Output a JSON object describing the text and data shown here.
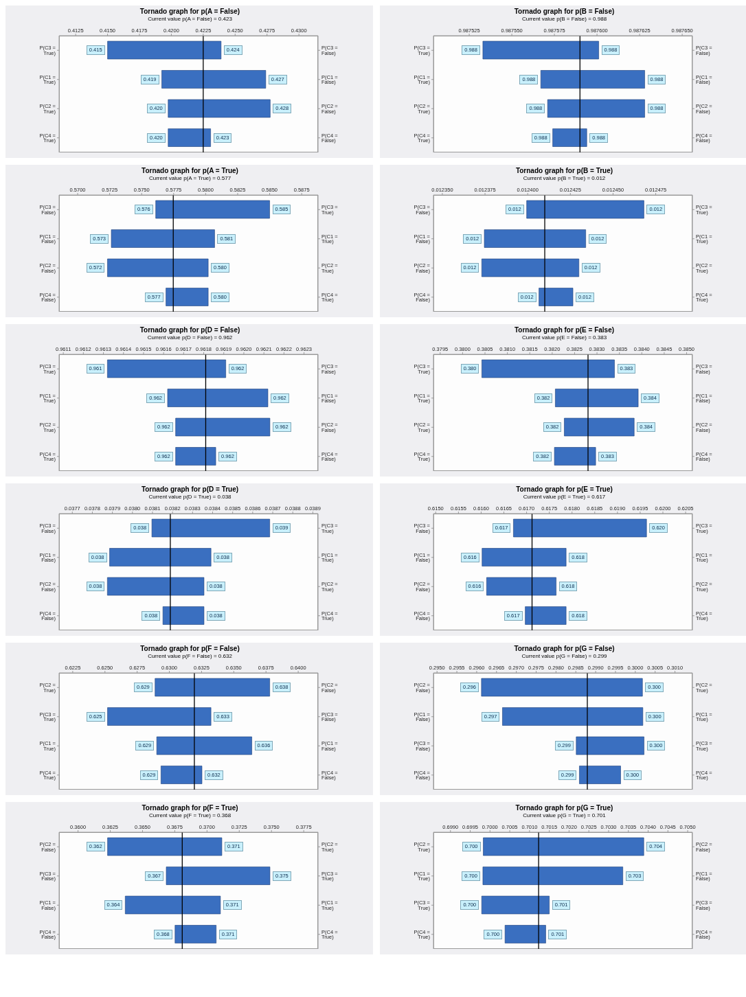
{
  "chart_data": [
    {
      "type": "bar",
      "orientation": "horizontal",
      "title": "Tornado graph for p(A = False)",
      "subtitle": "Current value p(A = False) = 0.423",
      "color": "#3a6fc0",
      "categories": [
        "P(C3 = True)",
        "P(C1 = True)",
        "P(C2 = True)",
        "P(C4 = True)"
      ],
      "y2_categories": [
        "P(C3 = False)",
        "P(C1 = False)",
        "P(C2 = False)",
        "P(C4 = False)"
      ],
      "base": [
        0.415,
        0.41925,
        0.41975,
        0.41975
      ],
      "values": [
        0.0089,
        0.00815,
        0.008,
        0.00333
      ],
      "xlim": [
        0.4112,
        0.4315
      ],
      "xticks": [
        0.4125,
        {
          "value": 0.415,
          "label": "0.4150"
        },
        0.4175,
        {
          "value": 0.42,
          "label": "0.4200"
        },
        0.4225,
        {
          "value": 0.425,
          "label": "0.4250"
        },
        0.4275,
        {
          "value": 0.43,
          "label": "0.4300"
        }
      ],
      "ref_lines": [
        {
          "axis": "x",
          "value": 0.4225,
          "color": "#000000"
        }
      ],
      "annotations": [
        {
          "text": "0.415",
          "x": 0.415,
          "y": "P(C3 = True)"
        },
        {
          "text": "0.424",
          "x": 0.4239,
          "y": "P(C3 = True)"
        },
        {
          "text": "0.419",
          "x": 0.41925,
          "y": "P(C1 = True)"
        },
        {
          "text": "0.427",
          "x": 0.4274,
          "y": "P(C1 = True)"
        },
        {
          "text": "0.420",
          "x": 0.41975,
          "y": "P(C2 = True)"
        },
        {
          "text": "0.428",
          "x": 0.42775,
          "y": "P(C2 = True)"
        },
        {
          "text": "0.420",
          "x": 0.41975,
          "y": "P(C4 = True)"
        },
        {
          "text": "0.423",
          "x": 0.42308,
          "y": "P(C4 = True)"
        }
      ]
    },
    {
      "type": "bar",
      "orientation": "horizontal",
      "title": "Tornado graph for p(B = False)",
      "subtitle": "Current value p(B = False) = 0.988",
      "color": "#3a6fc0",
      "categories": [
        "P(C3 = True)",
        "P(C1 = True)",
        "P(C2 = True)",
        "P(C4 = True)"
      ],
      "y2_categories": [
        "P(C3 = False)",
        "P(C1 = False)",
        "P(C2 = False)",
        "P(C4 = False)"
      ],
      "base": [
        0.987533,
        0.987567,
        0.987571,
        0.987574
      ],
      "values": [
        6.8e-05,
        6.1e-05,
        5.7e-05,
        2e-05
      ],
      "xlim": [
        0.987504,
        0.987656
      ],
      "xticks": [
        0.987525,
        {
          "value": 0.98755,
          "label": "0.987550"
        },
        0.987575,
        {
          "value": 0.9876,
          "label": "0.987600"
        },
        0.987625,
        {
          "value": 0.98765,
          "label": "0.987650"
        }
      ],
      "ref_lines": [
        {
          "axis": "x",
          "value": 0.98759,
          "color": "#000000"
        }
      ],
      "annotations": [
        {
          "text": "0.988",
          "x": 0.987533,
          "y": "P(C3 = True)"
        },
        {
          "text": "0.988",
          "x": 0.987601,
          "y": "P(C3 = True)"
        },
        {
          "text": "0.988",
          "x": 0.987567,
          "y": "P(C1 = True)"
        },
        {
          "text": "0.988",
          "x": 0.987628,
          "y": "P(C1 = True)"
        },
        {
          "text": "0.988",
          "x": 0.987571,
          "y": "P(C2 = True)"
        },
        {
          "text": "0.988",
          "x": 0.987628,
          "y": "P(C2 = True)"
        },
        {
          "text": "0.988",
          "x": 0.987574,
          "y": "P(C4 = True)"
        },
        {
          "text": "0.988",
          "x": 0.987594,
          "y": "P(C4 = True)"
        }
      ]
    },
    {
      "type": "bar",
      "orientation": "horizontal",
      "title": "Tornado graph for p(A = True)",
      "subtitle": "Current value p(A = True) = 0.577",
      "color": "#3a6fc0",
      "categories": [
        "P(C3 = False)",
        "P(C1 = False)",
        "P(C2 = False)",
        "P(C4 = False)"
      ],
      "y2_categories": [
        "P(C3 = True)",
        "P(C1 = True)",
        "P(C2 = True)",
        "P(C4 = True)"
      ],
      "base": [
        0.5761,
        0.57263,
        0.57233,
        0.5769
      ],
      "values": [
        0.0089,
        0.00807,
        0.00787,
        0.0033
      ],
      "xlim": [
        0.56855,
        0.58878
      ],
      "xticks": [
        {
          "value": 0.57,
          "label": "0.5700"
        },
        0.5725,
        {
          "value": 0.575,
          "label": "0.5750"
        },
        0.5775,
        {
          "value": 0.58,
          "label": "0.5800"
        },
        0.5825,
        {
          "value": 0.585,
          "label": "0.5850"
        },
        0.5875
      ],
      "ref_lines": [
        {
          "axis": "x",
          "value": 0.57747,
          "color": "#000000"
        }
      ],
      "annotations": [
        {
          "text": "0.576",
          "x": 0.5761,
          "y": "P(C3 = False)"
        },
        {
          "text": "0.585",
          "x": 0.585,
          "y": "P(C3 = False)"
        },
        {
          "text": "0.573",
          "x": 0.57263,
          "y": "P(C1 = False)"
        },
        {
          "text": "0.581",
          "x": 0.5807,
          "y": "P(C1 = False)"
        },
        {
          "text": "0.572",
          "x": 0.57233,
          "y": "P(C2 = False)"
        },
        {
          "text": "0.580",
          "x": 0.5802,
          "y": "P(C2 = False)"
        },
        {
          "text": "0.577",
          "x": 0.5769,
          "y": "P(C4 = False)"
        },
        {
          "text": "0.580",
          "x": 0.5802,
          "y": "P(C4 = False)"
        }
      ]
    },
    {
      "type": "bar",
      "orientation": "horizontal",
      "title": "Tornado graph for p(B = True)",
      "subtitle": "Current value p(B = True) = 0.012",
      "color": "#3a6fc0",
      "categories": [
        "P(C3 = False)",
        "P(C1 = False)",
        "P(C2 = False)",
        "P(C4 = False)"
      ],
      "y2_categories": [
        "P(C3 = True)",
        "P(C1 = True)",
        "P(C2 = True)",
        "P(C4 = True)"
      ],
      "base": [
        0.0123994,
        0.0123746,
        0.0123731,
        0.0124066
      ],
      "values": [
        6.87e-05,
        5.94e-05,
        5.69e-05,
        1.99e-05
      ],
      "xlim": [
        0.0123448,
        0.0124965
      ],
      "xticks": [
        {
          "value": 0.01235,
          "label": "0.012350"
        },
        0.012375,
        {
          "value": 0.0124,
          "label": "0.012400"
        },
        0.012425,
        {
          "value": 0.01245,
          "label": "0.012450"
        },
        0.012475
      ],
      "ref_lines": [
        {
          "axis": "x",
          "value": 0.01241,
          "color": "#000000"
        }
      ],
      "annotations": [
        {
          "text": "0.012",
          "x": 0.0123994,
          "y": "P(C3 = False)"
        },
        {
          "text": "0.012",
          "x": 0.0124681,
          "y": "P(C3 = False)"
        },
        {
          "text": "0.012",
          "x": 0.0123746,
          "y": "P(C1 = False)"
        },
        {
          "text": "0.012",
          "x": 0.012434,
          "y": "P(C1 = False)"
        },
        {
          "text": "0.012",
          "x": 0.0123731,
          "y": "P(C2 = False)"
        },
        {
          "text": "0.012",
          "x": 0.01243,
          "y": "P(C2 = False)"
        },
        {
          "text": "0.012",
          "x": 0.0124066,
          "y": "P(C4 = False)"
        },
        {
          "text": "0.012",
          "x": 0.0124265,
          "y": "P(C4 = False)"
        }
      ]
    },
    {
      "type": "bar",
      "orientation": "horizontal",
      "title": "Tornado graph for p(D = False)",
      "subtitle": "Current value p(D = False) = 0.962",
      "color": "#3a6fc0",
      "categories": [
        "P(C3 = True)",
        "P(C1 = True)",
        "P(C2 = True)",
        "P(C4 = True)"
      ],
      "y2_categories": [
        "P(C3 = False)",
        "P(C1 = False)",
        "P(C2 = False)",
        "P(C4 = False)"
      ],
      "base": [
        0.96132,
        0.96162,
        0.96166,
        0.96166
      ],
      "values": [
        0.00059,
        0.0005,
        0.00047,
        0.0002
      ],
      "xlim": [
        0.961079,
        0.96237
      ],
      "xticks": [
        0.9611,
        0.9612,
        0.9613,
        0.9614,
        0.9615,
        0.9616,
        0.9617,
        0.9618,
        0.9619,
        {
          "value": 0.962,
          "label": "0.9620"
        },
        0.9621,
        0.9622,
        0.9623
      ],
      "ref_lines": [
        {
          "axis": "x",
          "value": 0.96181,
          "color": "#000000"
        }
      ],
      "annotations": [
        {
          "text": "0.961",
          "x": 0.96132,
          "y": "P(C3 = True)"
        },
        {
          "text": "0.962",
          "x": 0.96191,
          "y": "P(C3 = True)"
        },
        {
          "text": "0.962",
          "x": 0.96162,
          "y": "P(C1 = True)"
        },
        {
          "text": "0.962",
          "x": 0.96212,
          "y": "P(C1 = True)"
        },
        {
          "text": "0.962",
          "x": 0.96166,
          "y": "P(C2 = True)"
        },
        {
          "text": "0.962",
          "x": 0.96213,
          "y": "P(C2 = True)"
        },
        {
          "text": "0.962",
          "x": 0.96166,
          "y": "P(C4 = True)"
        },
        {
          "text": "0.962",
          "x": 0.96186,
          "y": "P(C4 = True)"
        }
      ]
    },
    {
      "type": "bar",
      "orientation": "horizontal",
      "title": "Tornado graph for p(E = False)",
      "subtitle": "Current value p(E = False) = 0.383",
      "color": "#3a6fc0",
      "categories": [
        "P(C3 = True)",
        "P(C1 = True)",
        "P(C2 = True)",
        "P(C4 = True)"
      ],
      "y2_categories": [
        "P(C3 = False)",
        "P(C1 = False)",
        "P(C2 = False)",
        "P(C4 = False)"
      ],
      "base": [
        0.38043,
        0.38207,
        0.38227,
        0.38205
      ],
      "values": [
        0.00296,
        0.00185,
        0.00156,
        0.00092
      ],
      "xlim": [
        0.37935,
        0.38513
      ],
      "xticks": [
        0.3795,
        {
          "value": 0.38,
          "label": "0.3800"
        },
        0.3805,
        {
          "value": 0.381,
          "label": "0.3810"
        },
        0.3815,
        {
          "value": 0.382,
          "label": "0.3820"
        },
        0.3825,
        {
          "value": 0.383,
          "label": "0.3830"
        },
        0.3835,
        {
          "value": 0.384,
          "label": "0.3840"
        },
        0.3845,
        {
          "value": 0.385,
          "label": "0.3850"
        }
      ],
      "ref_lines": [
        {
          "axis": "x",
          "value": 0.3828,
          "color": "#000000"
        }
      ],
      "annotations": [
        {
          "text": "0.380",
          "x": 0.38043,
          "y": "P(C3 = True)"
        },
        {
          "text": "0.383",
          "x": 0.38339,
          "y": "P(C3 = True)"
        },
        {
          "text": "0.382",
          "x": 0.38207,
          "y": "P(C1 = True)"
        },
        {
          "text": "0.384",
          "x": 0.38392,
          "y": "P(C1 = True)"
        },
        {
          "text": "0.382",
          "x": 0.38227,
          "y": "P(C2 = True)"
        },
        {
          "text": "0.384",
          "x": 0.38383,
          "y": "P(C2 = True)"
        },
        {
          "text": "0.382",
          "x": 0.38205,
          "y": "P(C4 = True)"
        },
        {
          "text": "0.383",
          "x": 0.38297,
          "y": "P(C4 = True)"
        }
      ]
    },
    {
      "type": "bar",
      "orientation": "horizontal",
      "title": "Tornado graph for p(D = True)",
      "subtitle": "Current value p(D = True) = 0.038",
      "color": "#3a6fc0",
      "categories": [
        "P(C3 = False)",
        "P(C1 = False)",
        "P(C2 = False)",
        "P(C4 = False)"
      ],
      "y2_categories": [
        "P(C3 = True)",
        "P(C1 = True)",
        "P(C2 = True)",
        "P(C4 = True)"
      ],
      "base": [
        0.038097,
        0.037886,
        0.037875,
        0.038152
      ],
      "values": [
        0.000588,
        0.000506,
        0.000482,
        0.000205
      ],
      "xlim": [
        0.037634,
        0.038926
      ],
      "xticks": [
        0.0377,
        0.0378,
        0.0379,
        {
          "value": 0.038,
          "label": "0.0380"
        },
        0.0381,
        0.0382,
        0.0383,
        0.0384,
        0.0385,
        0.0386,
        0.0387,
        0.0388,
        0.0389
      ],
      "ref_lines": [
        {
          "axis": "x",
          "value": 0.038189,
          "color": "#000000"
        }
      ],
      "annotations": [
        {
          "text": "0.038",
          "x": 0.038097,
          "y": "P(C3 = False)"
        },
        {
          "text": "0.039",
          "x": 0.038685,
          "y": "P(C3 = False)"
        },
        {
          "text": "0.038",
          "x": 0.037886,
          "y": "P(C1 = False)"
        },
        {
          "text": "0.038",
          "x": 0.038392,
          "y": "P(C1 = False)"
        },
        {
          "text": "0.038",
          "x": 0.037875,
          "y": "P(C2 = False)"
        },
        {
          "text": "0.038",
          "x": 0.038357,
          "y": "P(C2 = False)"
        },
        {
          "text": "0.038",
          "x": 0.038152,
          "y": "P(C4 = False)"
        },
        {
          "text": "0.038",
          "x": 0.038357,
          "y": "P(C4 = False)"
        }
      ]
    },
    {
      "type": "bar",
      "orientation": "horizontal",
      "title": "Tornado graph for p(E = True)",
      "subtitle": "Current value p(E = True) = 0.617",
      "color": "#3a6fc0",
      "categories": [
        "P(C3 = False)",
        "P(C1 = False)",
        "P(C2 = False)",
        "P(C4 = False)"
      ],
      "y2_categories": [
        "P(C3 = True)",
        "P(C1 = True)",
        "P(C2 = True)",
        "P(C4 = True)"
      ],
      "base": [
        0.61671,
        0.61602,
        0.61612,
        0.61697
      ],
      "values": [
        0.00293,
        0.00185,
        0.00153,
        0.0009
      ],
      "xlim": [
        0.61495,
        0.62065
      ],
      "xticks": [
        {
          "value": 0.615,
          "label": "0.6150"
        },
        0.6155,
        {
          "value": 0.616,
          "label": "0.6160"
        },
        0.6165,
        {
          "value": 0.617,
          "label": "0.6170"
        },
        0.6175,
        {
          "value": 0.618,
          "label": "0.6180"
        },
        0.6185,
        {
          "value": 0.619,
          "label": "0.6190"
        },
        0.6195,
        {
          "value": 0.62,
          "label": "0.6200"
        },
        0.6205
      ],
      "ref_lines": [
        {
          "axis": "x",
          "value": 0.61712,
          "color": "#000000"
        }
      ],
      "annotations": [
        {
          "text": "0.617",
          "x": 0.61671,
          "y": "P(C3 = False)"
        },
        {
          "text": "0.620",
          "x": 0.61964,
          "y": "P(C3 = False)"
        },
        {
          "text": "0.616",
          "x": 0.61602,
          "y": "P(C1 = False)"
        },
        {
          "text": "0.618",
          "x": 0.61787,
          "y": "P(C1 = False)"
        },
        {
          "text": "0.616",
          "x": 0.61612,
          "y": "P(C2 = False)"
        },
        {
          "text": "0.618",
          "x": 0.61765,
          "y": "P(C2 = False)"
        },
        {
          "text": "0.617",
          "x": 0.61697,
          "y": "P(C4 = False)"
        },
        {
          "text": "0.618",
          "x": 0.61787,
          "y": "P(C4 = False)"
        }
      ]
    },
    {
      "type": "bar",
      "orientation": "horizontal",
      "title": "Tornado graph for p(F = False)",
      "subtitle": "Current value p(F = False) = 0.632",
      "color": "#3a6fc0",
      "categories": [
        "P(C2 = True)",
        "P(C3 = True)",
        "P(C1 = True)",
        "P(C4 = True)"
      ],
      "y2_categories": [
        "P(C2 = False)",
        "P(C3 = False)",
        "P(C1 = False)",
        "P(C4 = False)"
      ],
      "base": [
        0.62889,
        0.6252,
        0.62902,
        0.62935
      ],
      "values": [
        0.0089,
        0.00803,
        0.00738,
        0.00318
      ],
      "xlim": [
        0.62144,
        0.64154
      ],
      "xticks": [
        0.6225,
        {
          "value": 0.625,
          "label": "0.6250"
        },
        0.6275,
        {
          "value": 0.63,
          "label": "0.6300"
        },
        0.6325,
        {
          "value": 0.635,
          "label": "0.6350"
        },
        0.6375,
        {
          "value": 0.64,
          "label": "0.6400"
        }
      ],
      "ref_lines": [
        {
          "axis": "x",
          "value": 0.63194,
          "color": "#000000"
        }
      ],
      "annotations": [
        {
          "text": "0.629",
          "x": 0.62889,
          "y": "P(C2 = True)"
        },
        {
          "text": "0.638",
          "x": 0.63779,
          "y": "P(C2 = True)"
        },
        {
          "text": "0.625",
          "x": 0.6252,
          "y": "P(C3 = True)"
        },
        {
          "text": "0.633",
          "x": 0.63323,
          "y": "P(C3 = True)"
        },
        {
          "text": "0.629",
          "x": 0.62902,
          "y": "P(C1 = True)"
        },
        {
          "text": "0.636",
          "x": 0.6364,
          "y": "P(C1 = True)"
        },
        {
          "text": "0.629",
          "x": 0.62935,
          "y": "P(C4 = True)"
        },
        {
          "text": "0.632",
          "x": 0.63253,
          "y": "P(C4 = True)"
        }
      ]
    },
    {
      "type": "bar",
      "orientation": "horizontal",
      "title": "Tornado graph for p(G = False)",
      "subtitle": "Current value p(G = False) = 0.299",
      "color": "#3a6fc0",
      "categories": [
        "P(C2 = False)",
        "P(C1 = False)",
        "P(C3 = False)",
        "P(C4 = False)"
      ],
      "y2_categories": [
        "P(C2 = True)",
        "P(C1 = True)",
        "P(C3 = True)",
        "P(C4 = True)"
      ],
      "base": [
        0.29612,
        0.29665,
        0.29851,
        0.29859
      ],
      "values": [
        0.00406,
        0.00354,
        0.00171,
        0.00104
      ],
      "xlim": [
        0.29491,
        0.30144
      ],
      "xticks": [
        {
          "value": 0.295,
          "label": "0.2950"
        },
        0.2955,
        {
          "value": 0.296,
          "label": "0.2960"
        },
        0.2965,
        {
          "value": 0.297,
          "label": "0.2970"
        },
        0.2975,
        {
          "value": 0.298,
          "label": "0.2980"
        },
        0.2985,
        {
          "value": 0.299,
          "label": "0.2990"
        },
        0.2995,
        {
          "value": 0.3,
          "label": "0.3000"
        },
        0.3005,
        {
          "value": 0.301,
          "label": "0.3010"
        }
      ],
      "ref_lines": [
        {
          "axis": "x",
          "value": 0.29879,
          "color": "#000000"
        }
      ],
      "annotations": [
        {
          "text": "0.296",
          "x": 0.29612,
          "y": "P(C2 = False)"
        },
        {
          "text": "0.300",
          "x": 0.30018,
          "y": "P(C2 = False)"
        },
        {
          "text": "0.297",
          "x": 0.29665,
          "y": "P(C1 = False)"
        },
        {
          "text": "0.300",
          "x": 0.30019,
          "y": "P(C1 = False)"
        },
        {
          "text": "0.299",
          "x": 0.29851,
          "y": "P(C3 = False)"
        },
        {
          "text": "0.300",
          "x": 0.30022,
          "y": "P(C3 = False)"
        },
        {
          "text": "0.299",
          "x": 0.29859,
          "y": "P(C4 = False)"
        },
        {
          "text": "0.300",
          "x": 0.29963,
          "y": "P(C4 = False)"
        }
      ]
    },
    {
      "type": "bar",
      "orientation": "horizontal",
      "title": "Tornado graph for p(F = True)",
      "subtitle": "Current value p(F = True) = 0.368",
      "color": "#3a6fc0",
      "categories": [
        "P(C2 = False)",
        "P(C3 = False)",
        "P(C1 = False)",
        "P(C4 = False)"
      ],
      "y2_categories": [
        "P(C2 = True)",
        "P(C3 = True)",
        "P(C1 = True)",
        "P(C4 = True)"
      ],
      "base": [
        0.36229,
        0.36684,
        0.36366,
        0.36752
      ],
      "values": [
        0.00886,
        0.00804,
        0.00738,
        0.00319
      ],
      "xlim": [
        0.35853,
        0.37861
      ],
      "xticks": [
        {
          "value": 0.36,
          "label": "0.3600"
        },
        0.3625,
        {
          "value": 0.365,
          "label": "0.3650"
        },
        0.3675,
        {
          "value": 0.37,
          "label": "0.3700"
        },
        0.3725,
        {
          "value": 0.375,
          "label": "0.3750"
        },
        0.3775
      ],
      "ref_lines": [
        {
          "axis": "x",
          "value": 0.36808,
          "color": "#000000"
        }
      ],
      "annotations": [
        {
          "text": "0.362",
          "x": 0.36229,
          "y": "P(C2 = False)"
        },
        {
          "text": "0.371",
          "x": 0.37115,
          "y": "P(C2 = False)"
        },
        {
          "text": "0.367",
          "x": 0.36684,
          "y": "P(C3 = False)"
        },
        {
          "text": "0.375",
          "x": 0.37488,
          "y": "P(C3 = False)"
        },
        {
          "text": "0.364",
          "x": 0.36366,
          "y": "P(C1 = False)"
        },
        {
          "text": "0.371",
          "x": 0.37104,
          "y": "P(C1 = False)"
        },
        {
          "text": "0.368",
          "x": 0.36752,
          "y": "P(C4 = False)"
        },
        {
          "text": "0.371",
          "x": 0.37071,
          "y": "P(C4 = False)"
        }
      ]
    },
    {
      "type": "bar",
      "orientation": "horizontal",
      "title": "Tornado graph for p(G = True)",
      "subtitle": "Current value p(G = True) = 0.701",
      "color": "#3a6fc0",
      "categories": [
        "P(C2 = True)",
        "P(C1 = True)",
        "P(C3 = True)",
        "P(C4 = True)"
      ],
      "y2_categories": [
        "P(C2 = False)",
        "P(C1 = False)",
        "P(C3 = False)",
        "P(C4 = False)"
      ],
      "base": [
        0.69983,
        0.69982,
        0.69979,
        0.70038
      ],
      "values": [
        0.00406,
        0.00354,
        0.00171,
        0.00103
      ],
      "xlim": [
        0.69857,
        0.70512
      ],
      "xticks": [
        {
          "value": 0.699,
          "label": "0.6990"
        },
        0.6995,
        {
          "value": 0.7,
          "label": "0.7000"
        },
        0.7005,
        {
          "value": 0.701,
          "label": "0.7010"
        },
        0.7015,
        {
          "value": 0.702,
          "label": "0.7020"
        },
        0.7025,
        {
          "value": 0.703,
          "label": "0.7030"
        },
        0.7035,
        {
          "value": 0.704,
          "label": "0.7040"
        },
        0.7045,
        {
          "value": 0.705,
          "label": "0.7050"
        }
      ],
      "ref_lines": [
        {
          "axis": "x",
          "value": 0.70123,
          "color": "#000000"
        }
      ],
      "annotations": [
        {
          "text": "0.700",
          "x": 0.69983,
          "y": "P(C2 = True)"
        },
        {
          "text": "0.704",
          "x": 0.70389,
          "y": "P(C2 = True)"
        },
        {
          "text": "0.700",
          "x": 0.69982,
          "y": "P(C1 = True)"
        },
        {
          "text": "0.703",
          "x": 0.70336,
          "y": "P(C1 = True)"
        },
        {
          "text": "0.700",
          "x": 0.69979,
          "y": "P(C3 = True)"
        },
        {
          "text": "0.701",
          "x": 0.7015,
          "y": "P(C3 = True)"
        },
        {
          "text": "0.700",
          "x": 0.70038,
          "y": "P(C4 = True)"
        },
        {
          "text": "0.701",
          "x": 0.70141,
          "y": "P(C4 = True)"
        }
      ]
    }
  ]
}
